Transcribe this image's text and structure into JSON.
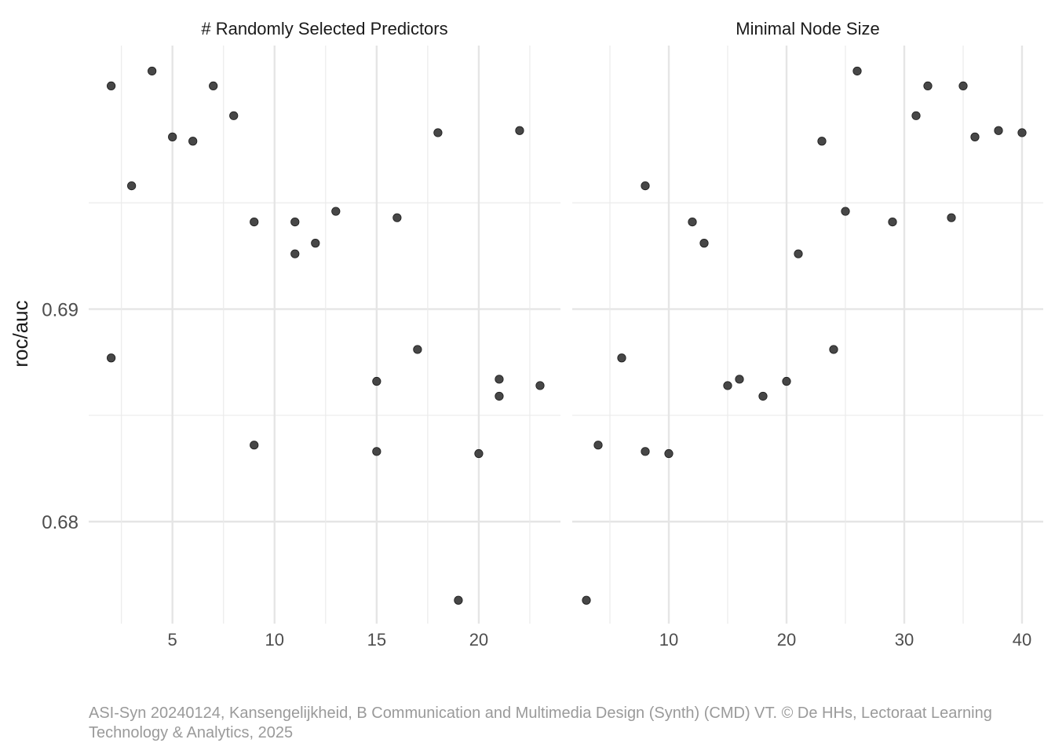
{
  "chart_data": {
    "type": "scatter",
    "ylabel": "roc/auc",
    "yticks": [
      0.68,
      0.69
    ],
    "ytick_labels": [
      "0.68",
      "0.69"
    ],
    "ylim": [
      0.6752,
      0.7024
    ],
    "point_color": "#333333",
    "grid": true,
    "panels": [
      {
        "title": "# Randomly Selected Predictors",
        "xlim": [
          0.9,
          24.0
        ],
        "xticks": [
          5,
          10,
          15,
          20
        ],
        "xtick_labels": [
          "5",
          "10",
          "15",
          "20"
        ],
        "points": [
          {
            "x": 2,
            "y": 0.7005
          },
          {
            "x": 2,
            "y": 0.6877
          },
          {
            "x": 3,
            "y": 0.6958
          },
          {
            "x": 4,
            "y": 0.7012
          },
          {
            "x": 5,
            "y": 0.6981
          },
          {
            "x": 6,
            "y": 0.6979
          },
          {
            "x": 7,
            "y": 0.7005
          },
          {
            "x": 8,
            "y": 0.6991
          },
          {
            "x": 9,
            "y": 0.6941
          },
          {
            "x": 9,
            "y": 0.6836
          },
          {
            "x": 11,
            "y": 0.6941
          },
          {
            "x": 11,
            "y": 0.6926
          },
          {
            "x": 12,
            "y": 0.6931
          },
          {
            "x": 13,
            "y": 0.6946
          },
          {
            "x": 15,
            "y": 0.6866
          },
          {
            "x": 15,
            "y": 0.6833
          },
          {
            "x": 16,
            "y": 0.6943
          },
          {
            "x": 17,
            "y": 0.6881
          },
          {
            "x": 18,
            "y": 0.6983
          },
          {
            "x": 19,
            "y": 0.6763
          },
          {
            "x": 20,
            "y": 0.6832
          },
          {
            "x": 21,
            "y": 0.6867
          },
          {
            "x": 21,
            "y": 0.6859
          },
          {
            "x": 22,
            "y": 0.6984
          },
          {
            "x": 23,
            "y": 0.6864
          }
        ]
      },
      {
        "title": "Minimal Node Size",
        "xlim": [
          1.8,
          41.8
        ],
        "xticks": [
          10,
          20,
          30,
          40
        ],
        "xtick_labels": [
          "10",
          "20",
          "30",
          "40"
        ],
        "points": [
          {
            "x": 3,
            "y": 0.6763
          },
          {
            "x": 4,
            "y": 0.6836
          },
          {
            "x": 6,
            "y": 0.6877
          },
          {
            "x": 8,
            "y": 0.6958
          },
          {
            "x": 8,
            "y": 0.6833
          },
          {
            "x": 10,
            "y": 0.6832
          },
          {
            "x": 12,
            "y": 0.6941
          },
          {
            "x": 13,
            "y": 0.6931
          },
          {
            "x": 15,
            "y": 0.6864
          },
          {
            "x": 16,
            "y": 0.6867
          },
          {
            "x": 18,
            "y": 0.6859
          },
          {
            "x": 20,
            "y": 0.6866
          },
          {
            "x": 21,
            "y": 0.6926
          },
          {
            "x": 23,
            "y": 0.6979
          },
          {
            "x": 24,
            "y": 0.6881
          },
          {
            "x": 25,
            "y": 0.6946
          },
          {
            "x": 26,
            "y": 0.7012
          },
          {
            "x": 29,
            "y": 0.6941
          },
          {
            "x": 31,
            "y": 0.6991
          },
          {
            "x": 32,
            "y": 0.7005
          },
          {
            "x": 34,
            "y": 0.6943
          },
          {
            "x": 35,
            "y": 0.7005
          },
          {
            "x": 36,
            "y": 0.6981
          },
          {
            "x": 38,
            "y": 0.6984
          },
          {
            "x": 40,
            "y": 0.6983
          }
        ]
      }
    ]
  },
  "caption": "ASI-Syn 20240124, Kansengelijkheid, B Communication and Multimedia Design (Synth) (CMD) VT. © De HHs, Lectoraat Learning Technology & Analytics, 2025"
}
